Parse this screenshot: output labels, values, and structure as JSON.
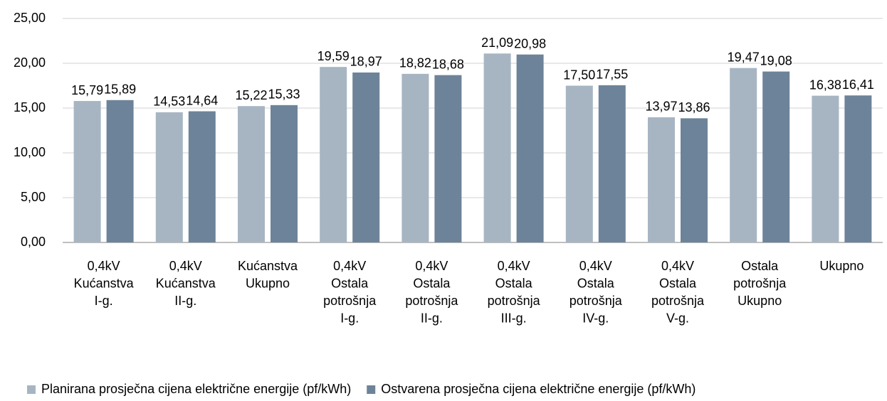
{
  "chart_data": {
    "type": "bar",
    "categories": [
      [
        "0,4kV",
        "Kućanstva",
        "I-g."
      ],
      [
        "0,4kV",
        "Kućanstva",
        "II-g."
      ],
      [
        "Kućanstva",
        "Ukupno"
      ],
      [
        "0,4kV",
        "Ostala",
        "potrošnja",
        "I-g."
      ],
      [
        "0,4kV",
        "Ostala",
        "potrošnja",
        "II-g."
      ],
      [
        "0,4kV",
        "Ostala",
        "potrošnja",
        "III-g."
      ],
      [
        "0,4kV",
        "Ostala",
        "potrošnja",
        "IV-g."
      ],
      [
        "0,4kV",
        "Ostala",
        "potrošnja",
        "V-g."
      ],
      [
        "Ostala",
        "potrošnja",
        "Ukupno"
      ],
      [
        "Ukupno"
      ]
    ],
    "series": [
      {
        "name": "Planirana prosječna cijena električne energije (pf/kWh)",
        "color": "#a7b5c3",
        "values": [
          15.79,
          14.53,
          15.22,
          19.59,
          18.82,
          21.09,
          17.5,
          13.97,
          19.47,
          16.38
        ],
        "value_labels": [
          "15,79",
          "14,53",
          "15,22",
          "19,59",
          "18,82",
          "21,09",
          "17,50",
          "13,97",
          "19,47",
          "16,38"
        ]
      },
      {
        "name": "Ostvarena prosječna cijena električne energije (pf/kWh)",
        "color": "#6d8399",
        "values": [
          15.89,
          14.64,
          15.33,
          18.97,
          18.68,
          20.98,
          17.55,
          13.86,
          19.08,
          16.41
        ],
        "value_labels": [
          "15,89",
          "14,64",
          "15,33",
          "18,97",
          "18,68",
          "20,98",
          "17,55",
          "13,86",
          "19,08",
          "16,41"
        ]
      }
    ],
    "ylim": [
      0,
      25
    ],
    "yticks": [
      {
        "value": 0,
        "label": "0,00"
      },
      {
        "value": 5,
        "label": "5,00"
      },
      {
        "value": 10,
        "label": "10,00"
      },
      {
        "value": 15,
        "label": "15,00"
      },
      {
        "value": 20,
        "label": "20,00"
      },
      {
        "value": 25,
        "label": "25,00"
      }
    ],
    "grid": true,
    "legend": "bottom"
  }
}
